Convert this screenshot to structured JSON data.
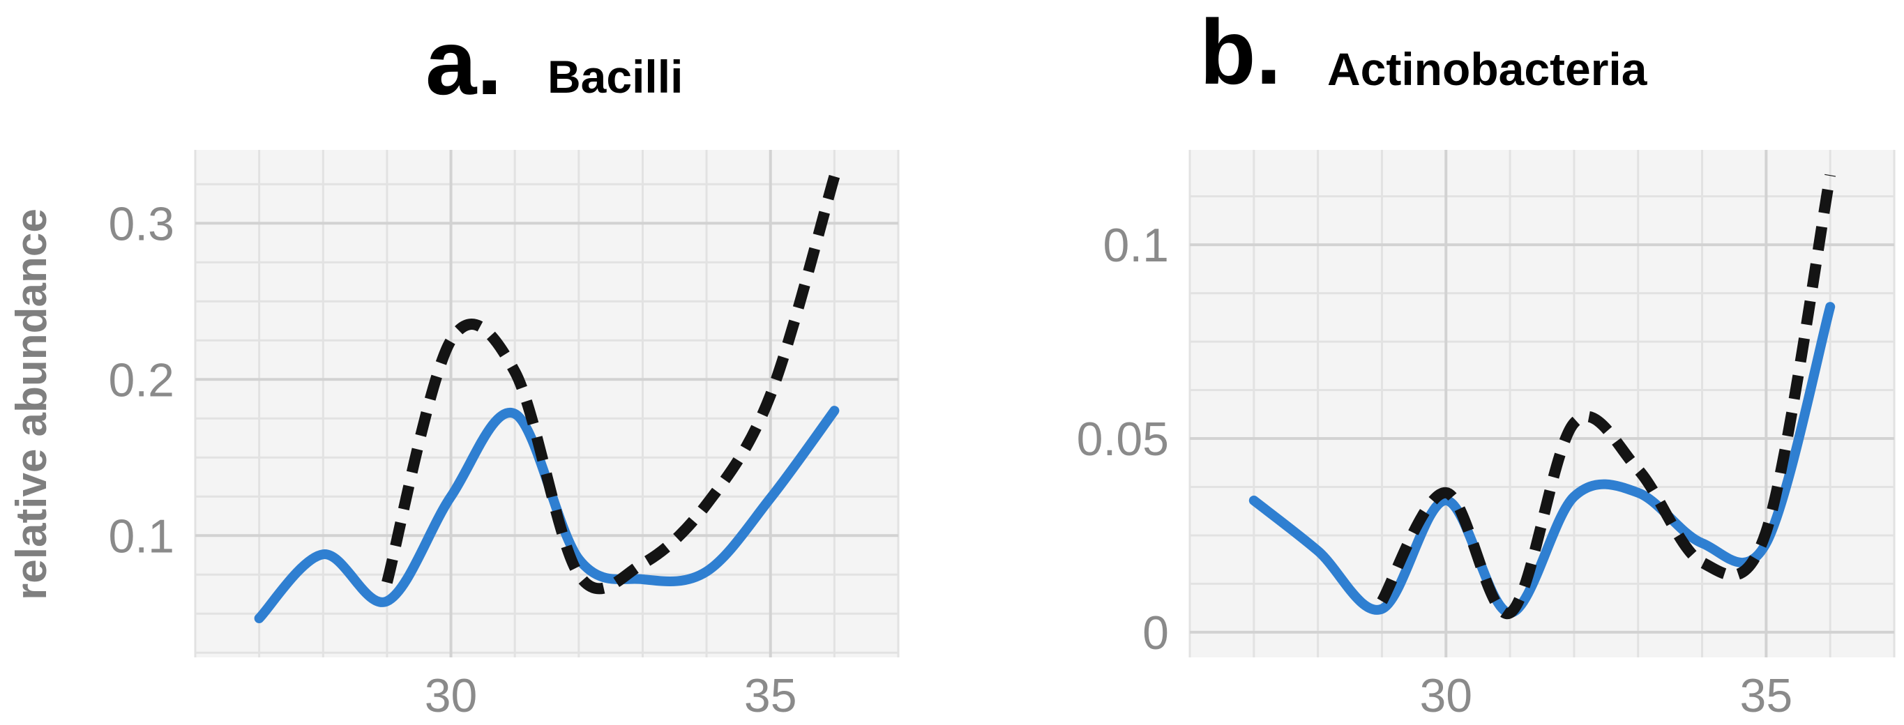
{
  "ylabel": "relative abundance",
  "colors": {
    "solid": "#2f7fd1",
    "dashed": "#141414"
  },
  "chart_data": [
    {
      "type": "line",
      "panel_letter": "a.",
      "title": "Bacilli",
      "xlabel": "",
      "ylabel": "relative abundance",
      "xlim": [
        26.0,
        37.0
      ],
      "ylim": [
        0.022,
        0.347
      ],
      "xticks": [
        30,
        35
      ],
      "xtick_labels": [
        "30",
        "35"
      ],
      "yticks": [
        0.1,
        0.2,
        0.3
      ],
      "ytick_labels": [
        "0.1",
        "0.2",
        "0.3"
      ],
      "grid": true,
      "series": [
        {
          "style": "solid",
          "x": [
            27,
            28,
            29,
            30,
            31,
            32,
            33,
            34,
            35,
            36
          ],
          "y": [
            0.047,
            0.088,
            0.058,
            0.125,
            0.178,
            0.085,
            0.072,
            0.077,
            0.124,
            0.18
          ]
        },
        {
          "style": "dashed",
          "x": [
            29,
            30,
            31,
            32,
            33,
            34,
            35,
            36
          ],
          "y": [
            0.07,
            0.225,
            0.205,
            0.075,
            0.082,
            0.12,
            0.19,
            0.33
          ]
        }
      ]
    },
    {
      "type": "line",
      "panel_letter": "b.",
      "title": "Actinobacteria",
      "xlabel": "",
      "ylabel": "",
      "xlim": [
        26.0,
        37.0
      ],
      "ylim": [
        -0.0065,
        0.1245
      ],
      "xticks": [
        30,
        35
      ],
      "xtick_labels": [
        "30",
        "35"
      ],
      "yticks": [
        0,
        0.05,
        0.1
      ],
      "ytick_labels": [
        "0",
        "0.05",
        "0.1"
      ],
      "grid": true,
      "series": [
        {
          "style": "solid",
          "x": [
            27,
            28,
            29,
            30,
            31,
            32,
            33,
            34,
            35,
            36
          ],
          "y": [
            0.034,
            0.021,
            0.006,
            0.034,
            0.005,
            0.035,
            0.036,
            0.023,
            0.023,
            0.084
          ]
        },
        {
          "style": "dashed",
          "x": [
            29,
            30,
            31,
            32,
            33,
            34,
            35,
            36
          ],
          "y": [
            0.008,
            0.036,
            0.005,
            0.054,
            0.042,
            0.018,
            0.026,
            0.118
          ]
        }
      ]
    }
  ]
}
